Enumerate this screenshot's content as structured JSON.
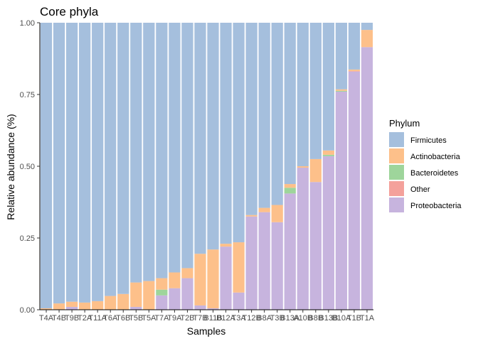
{
  "chart_data": {
    "type": "bar",
    "stacked": true,
    "title": "Core phyla",
    "xlabel": "Samples",
    "ylabel": "Relative abundance (%)",
    "ylim": [
      0,
      1
    ],
    "yticks": [
      "0.00",
      "0.25",
      "0.50",
      "0.75",
      "1.00"
    ],
    "yticks_values": [
      0,
      0.25,
      0.5,
      0.75,
      1
    ],
    "grid": false,
    "legend_position": "right",
    "legend_title": "Phylum",
    "categories": [
      "T4A",
      "T4B",
      "T9B",
      "T2A",
      "T11A",
      "T6A",
      "T6B",
      "T5B",
      "T5A",
      "T7A",
      "T9A",
      "T2B",
      "T7B",
      "B11B",
      "B12A",
      "T3A",
      "T12B",
      "B8A",
      "T3B",
      "B13A",
      "A10B",
      "B8B",
      "B13B",
      "B10A",
      "T1B",
      "T1A"
    ],
    "series": [
      {
        "name": "Proteobacteria",
        "color": "#c7b4de",
        "values": [
          0,
          0,
          0.01,
          0,
          0,
          0,
          0,
          0.01,
          0,
          0.05,
          0.075,
          0.11,
          0.015,
          0.005,
          0.22,
          0.06,
          0.325,
          0.34,
          0.305,
          0.405,
          0.495,
          0.445,
          0.535,
          0.76,
          0.83,
          0.915
        ]
      },
      {
        "name": "Other",
        "color": "#f4a19b",
        "values": [
          0,
          0,
          0,
          0,
          0,
          0,
          0,
          0,
          0,
          0,
          0,
          0,
          0,
          0,
          0,
          0,
          0,
          0,
          0,
          0,
          0,
          0,
          0,
          0,
          0.002,
          0
        ]
      },
      {
        "name": "Bacteroidetes",
        "color": "#9ed59b",
        "values": [
          0,
          0,
          0,
          0,
          0,
          0,
          0,
          0,
          0,
          0.02,
          0,
          0,
          0,
          0,
          0,
          0,
          0,
          0,
          0,
          0.02,
          0,
          0,
          0.005,
          0.003,
          0,
          0
        ]
      },
      {
        "name": "Actinobacteria",
        "color": "#fdc08a",
        "values": [
          0.005,
          0.022,
          0.018,
          0.025,
          0.03,
          0.048,
          0.055,
          0.085,
          0.1,
          0.04,
          0.055,
          0.035,
          0.18,
          0.205,
          0.01,
          0.175,
          0.005,
          0.015,
          0.06,
          0.013,
          0.005,
          0.08,
          0.015,
          0.005,
          0.005,
          0.06
        ]
      },
      {
        "name": "Firmicutes",
        "color": "#a5bfdd",
        "values": [
          0.995,
          0.978,
          0.972,
          0.975,
          0.97,
          0.952,
          0.945,
          0.905,
          0.9,
          0.89,
          0.87,
          0.855,
          0.805,
          0.79,
          0.77,
          0.765,
          0.67,
          0.645,
          0.635,
          0.562,
          0.5,
          0.475,
          0.445,
          0.232,
          0.163,
          0.025
        ]
      }
    ],
    "legend_order": [
      "Firmicutes",
      "Actinobacteria",
      "Bacteroidetes",
      "Other",
      "Proteobacteria"
    ]
  }
}
